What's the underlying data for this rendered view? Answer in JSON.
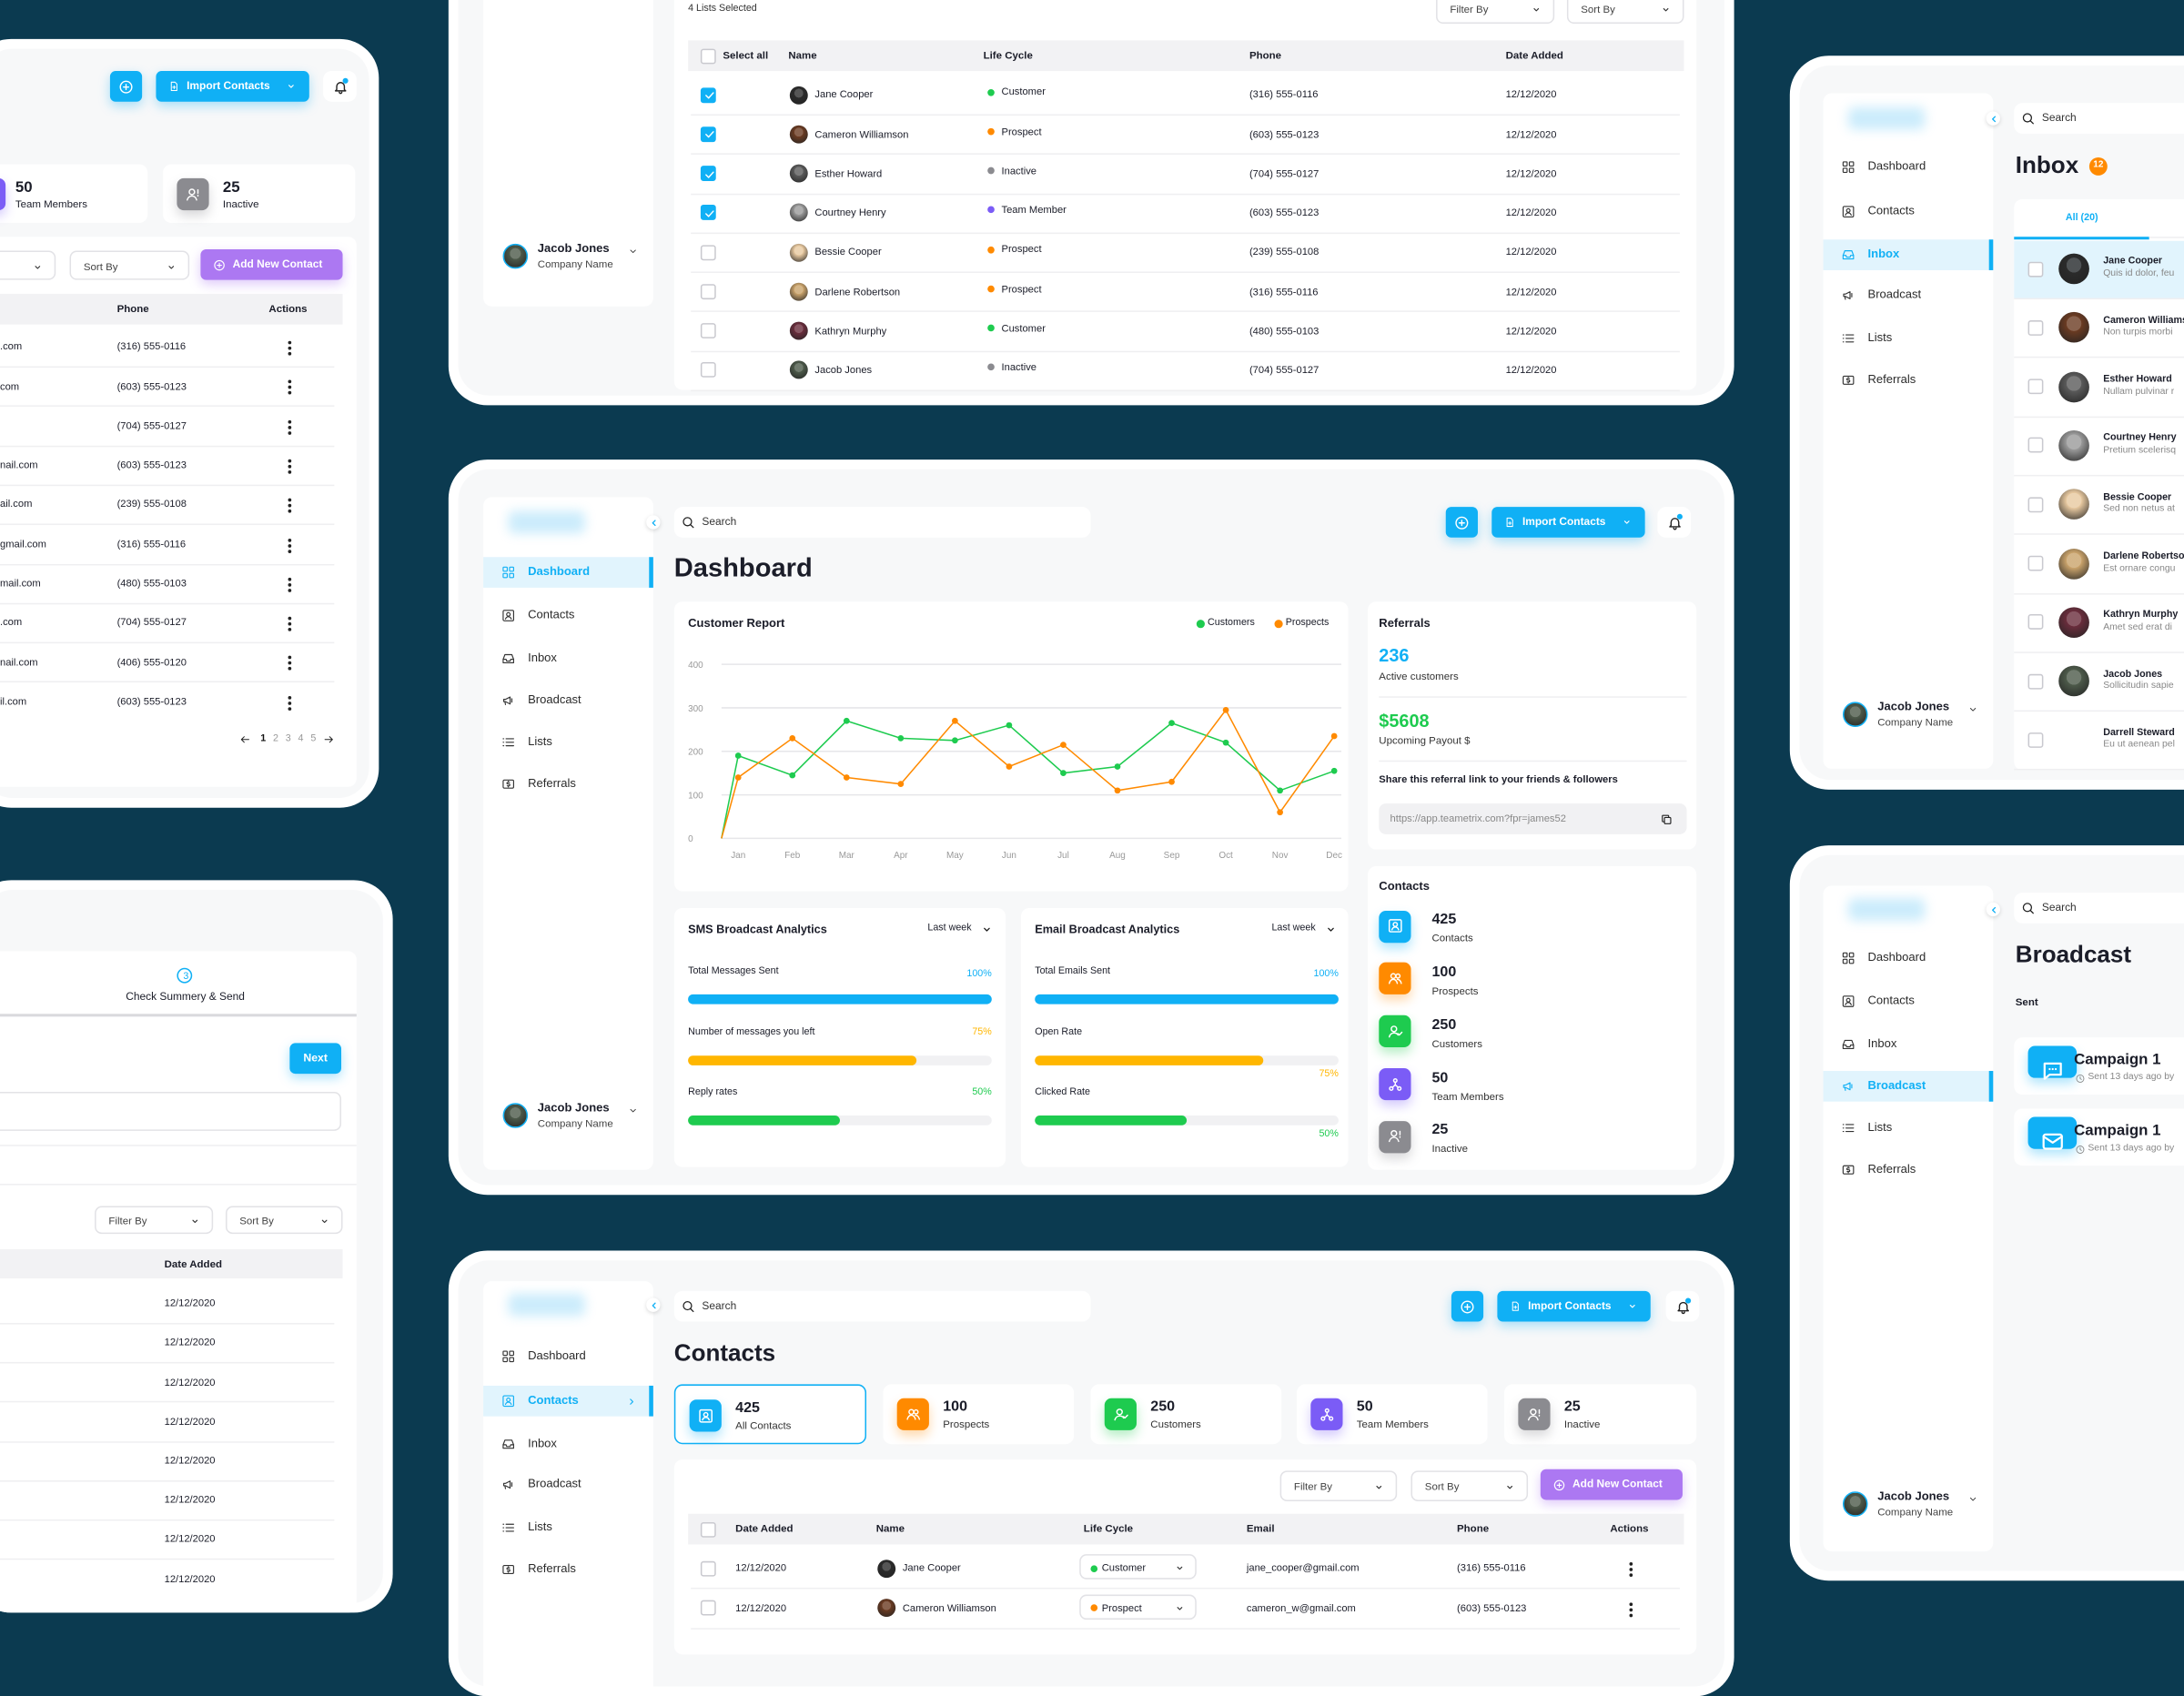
{
  "colors": {
    "background": "#0b3a50",
    "primary": "#10b0f5",
    "orange": "#ff8a00",
    "green": "#1ecb4f",
    "purple": "#7b5cf6",
    "gray": "#8b8b90",
    "add_contact": "#ac78f2",
    "amber": "#ffb600"
  },
  "app": {
    "search_placeholder": "Search",
    "import_label": "Import Contacts",
    "user_name": "Jacob Jones",
    "user_company": "Company Name",
    "filter_label": "Filter By",
    "sort_label": "Sort By",
    "add_contact_label": "Add New Contact",
    "nav": [
      {
        "label": "Dashboard",
        "icon": "dashboard-icon"
      },
      {
        "label": "Contacts",
        "icon": "contacts-icon"
      },
      {
        "label": "Inbox",
        "icon": "inbox-icon"
      },
      {
        "label": "Broadcast",
        "icon": "broadcast-icon"
      },
      {
        "label": "Lists",
        "icon": "lists-icon"
      },
      {
        "label": "Referrals",
        "icon": "referrals-icon"
      }
    ]
  },
  "lifecycle_colors": {
    "Customer": "#1ecb4f",
    "Prospect": "#ff8a00",
    "Inactive": "#8b8b90",
    "Team Member": "#7b5cf6"
  },
  "contacts_partial": {
    "stats": [
      {
        "value": "50",
        "label": "Team Members",
        "color": "#7b5cf6",
        "icon": "team-icon"
      },
      {
        "value": "25",
        "label": "Inactive",
        "color": "#8b8b90",
        "icon": "inactive-icon"
      }
    ],
    "headers": [
      "Phone",
      "Actions"
    ],
    "rows": [
      {
        "email": ".com",
        "phone": "(316) 555-0116"
      },
      {
        "email": "com",
        "phone": "(603) 555-0123"
      },
      {
        "email": "",
        "phone": "(704) 555-0127"
      },
      {
        "email": "nail.com",
        "phone": "(603) 555-0123"
      },
      {
        "email": "ail.com",
        "phone": "(239) 555-0108"
      },
      {
        "email": "gmail.com",
        "phone": "(316) 555-0116"
      },
      {
        "email": "mail.com",
        "phone": "(480) 555-0103"
      },
      {
        "email": ".com",
        "phone": "(704) 555-0127"
      },
      {
        "email": "nail.com",
        "phone": "(406) 555-0120"
      },
      {
        "email": "il.com",
        "phone": "(603) 555-0123"
      }
    ],
    "pagination": [
      "1",
      "2",
      "3",
      "4",
      "5"
    ],
    "current_page": "1"
  },
  "wizard": {
    "step_number": "3",
    "step_label": "Check Summery & Send",
    "next_label": "Next",
    "header": "Date Added",
    "dates": [
      "12/12/2020",
      "12/12/2020",
      "12/12/2020",
      "12/12/2020",
      "12/12/2020",
      "12/12/2020",
      "12/12/2020",
      "12/12/2020"
    ]
  },
  "lists": {
    "selected_label": "4 Lists Selected",
    "headers": {
      "select_all": "Select all",
      "name": "Name",
      "lifecycle": "Life Cycle",
      "phone": "Phone",
      "date": "Date Added"
    },
    "rows": [
      {
        "checked": true,
        "name": "Jane Cooper",
        "lifecycle": "Customer",
        "phone": "(316) 555-0116",
        "date": "12/12/2020"
      },
      {
        "checked": true,
        "name": "Cameron Williamson",
        "lifecycle": "Prospect",
        "phone": "(603) 555-0123",
        "date": "12/12/2020"
      },
      {
        "checked": true,
        "name": "Esther Howard",
        "lifecycle": "Inactive",
        "phone": "(704) 555-0127",
        "date": "12/12/2020"
      },
      {
        "checked": true,
        "name": "Courtney Henry",
        "lifecycle": "Team Member",
        "phone": "(603) 555-0123",
        "date": "12/12/2020"
      },
      {
        "checked": false,
        "name": "Bessie Cooper",
        "lifecycle": "Prospect",
        "phone": "(239) 555-0108",
        "date": "12/12/2020"
      },
      {
        "checked": false,
        "name": "Darlene Robertson",
        "lifecycle": "Prospect",
        "phone": "(316) 555-0116",
        "date": "12/12/2020"
      },
      {
        "checked": false,
        "name": "Kathryn Murphy",
        "lifecycle": "Customer",
        "phone": "(480) 555-0103",
        "date": "12/12/2020"
      },
      {
        "checked": false,
        "name": "Jacob Jones",
        "lifecycle": "Inactive",
        "phone": "(704) 555-0127",
        "date": "12/12/2020"
      }
    ]
  },
  "dashboard": {
    "title": "Dashboard",
    "referrals": {
      "title": "Referrals",
      "active_value": "236",
      "active_label": "Active customers",
      "payout_value": "$5608",
      "payout_label": "Upcoming Payout $",
      "share_label": "Share this referral link to your friends & followers",
      "link": "https://app.teametrix.com?fpr=james52"
    },
    "contacts_title": "Contacts",
    "contacts": [
      {
        "value": "425",
        "label": "Contacts",
        "color": "#10b0f5",
        "icon": "contacts-icon"
      },
      {
        "value": "100",
        "label": "Prospects",
        "color": "#ff8a00",
        "icon": "prospects-icon"
      },
      {
        "value": "250",
        "label": "Customers",
        "color": "#1ecb4f",
        "icon": "customers-icon"
      },
      {
        "value": "50",
        "label": "Team Members",
        "color": "#7b5cf6",
        "icon": "team-icon"
      },
      {
        "value": "25",
        "label": "Inactive",
        "color": "#8b8b90",
        "icon": "inactive-icon"
      }
    ],
    "sms": {
      "title": "SMS Broadcast Analytics",
      "period": "Last week",
      "metrics": [
        {
          "label": "Total Messages Sent",
          "percent": 100,
          "display": "100%",
          "color": "#10b0f5"
        },
        {
          "label": "Number of messages you left",
          "percent": 75,
          "display": "75%",
          "color": "#ffb600"
        },
        {
          "label": "Reply rates",
          "percent": 50,
          "display": "50%",
          "color": "#1ecb4f"
        }
      ]
    },
    "email": {
      "title": "Email Broadcast Analytics",
      "period": "Last week",
      "metrics": [
        {
          "label": "Total Emails Sent",
          "percent": 100,
          "display": "100%",
          "color": "#10b0f5"
        },
        {
          "label": "Open Rate",
          "percent": 75,
          "display": "75%",
          "color": "#ffb600"
        },
        {
          "label": "Clicked Rate",
          "percent": 50,
          "display": "50%",
          "color": "#1ecb4f"
        }
      ]
    }
  },
  "chart_data": {
    "type": "line",
    "title": "Customer Report",
    "categories": [
      "Jan",
      "Feb",
      "Mar",
      "Apr",
      "May",
      "Jun",
      "Jul",
      "Aug",
      "Sep",
      "Oct",
      "Nov",
      "Dec"
    ],
    "y_ticks": [
      "0",
      "100",
      "200",
      "300",
      "400"
    ],
    "ylim": [
      0,
      400
    ],
    "grid": true,
    "legend_position": "top-right",
    "series": [
      {
        "name": "Customers",
        "color": "#1ecb4f",
        "values": [
          190,
          145,
          270,
          230,
          225,
          260,
          150,
          165,
          265,
          220,
          110,
          155
        ]
      },
      {
        "name": "Prospects",
        "color": "#ff8a00",
        "values": [
          140,
          230,
          140,
          125,
          270,
          165,
          215,
          110,
          130,
          295,
          60,
          235
        ]
      }
    ]
  },
  "contacts_page": {
    "title": "Contacts",
    "stats": [
      {
        "value": "425",
        "label": "All Contacts",
        "color": "#10b0f5",
        "icon": "contacts-icon",
        "selected": true
      },
      {
        "value": "100",
        "label": "Prospects",
        "color": "#ff8a00",
        "icon": "prospects-icon"
      },
      {
        "value": "250",
        "label": "Customers",
        "color": "#1ecb4f",
        "icon": "customers-icon"
      },
      {
        "value": "50",
        "label": "Team Members",
        "color": "#7b5cf6",
        "icon": "team-icon"
      },
      {
        "value": "25",
        "label": "Inactive",
        "color": "#8b8b90",
        "icon": "inactive-icon"
      }
    ],
    "headers": [
      "Date Added",
      "Name",
      "Life Cycle",
      "Email",
      "Phone",
      "Actions"
    ],
    "rows": [
      {
        "date": "12/12/2020",
        "name": "Jane Cooper",
        "lifecycle": "Customer",
        "email": "jane_cooper@gmail.com",
        "phone": "(316) 555-0116"
      },
      {
        "date": "12/12/2020",
        "name": "Cameron Williamson",
        "lifecycle": "Prospect",
        "email": "cameron_w@gmail.com",
        "phone": "(603) 555-0123"
      }
    ]
  },
  "inbox": {
    "title": "Inbox",
    "badge": "12",
    "tab": "All (20)",
    "messages": [
      {
        "name": "Jane Cooper",
        "preview": "Quis id dolor, feu"
      },
      {
        "name": "Cameron Williamson",
        "preview": "Non turpis morbi"
      },
      {
        "name": "Esther Howard",
        "preview": "Nullam pulvinar r"
      },
      {
        "name": "Courtney Henry",
        "preview": "Pretium scelerisq"
      },
      {
        "name": "Bessie Cooper",
        "preview": "Sed non netus at"
      },
      {
        "name": "Darlene Robertson",
        "preview": "Est ornare congu"
      },
      {
        "name": "Kathryn Murphy",
        "preview": "Amet sed erat di"
      },
      {
        "name": "Jacob Jones",
        "preview": "Sollicitudin sapie"
      },
      {
        "name": "Darrell Steward",
        "preview": "Eu ut aenean pel"
      }
    ]
  },
  "broadcast": {
    "title": "Broadcast",
    "section": "Sent",
    "campaigns": [
      {
        "title": "Campaign 1",
        "meta": "Sent 13 days ago by",
        "icon": "chat-icon"
      },
      {
        "title": "Campaign 1",
        "meta": "Sent 13 days ago by",
        "icon": "mail-icon"
      }
    ]
  }
}
